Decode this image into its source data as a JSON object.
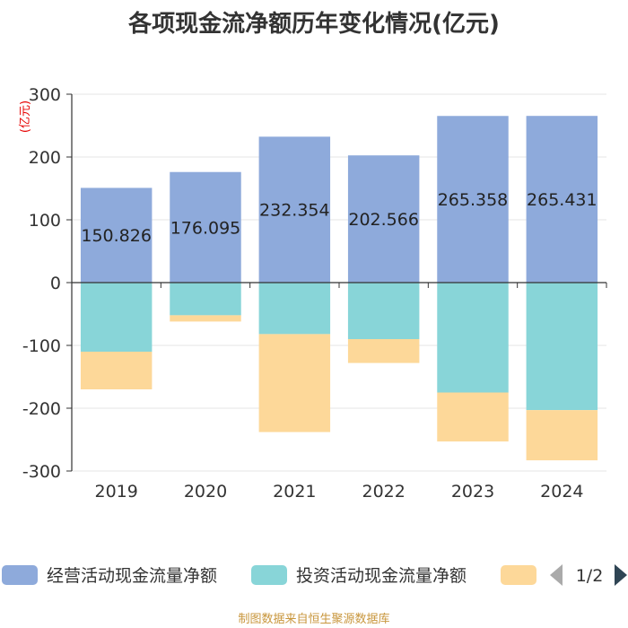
{
  "chart_data": {
    "type": "bar",
    "stacked": true,
    "title": "各项现金流净额历年变化情况(亿元)",
    "ylabel": "(亿元)",
    "ylim": [
      -300,
      300
    ],
    "yticks": [
      300,
      200,
      100,
      0,
      -100,
      -200,
      -300
    ],
    "ytick_labels": [
      "300",
      "200",
      "100",
      "0",
      "-100",
      "-200",
      "-300"
    ],
    "categories": [
      "2019",
      "2020",
      "2021",
      "2022",
      "2023",
      "2024"
    ],
    "series": [
      {
        "name": "经营活动现金流量净额",
        "color": "#8eaadb",
        "values": [
          150.826,
          176.095,
          232.354,
          202.566,
          265.358,
          265.431
        ],
        "labels": [
          "150.826",
          "176.095",
          "232.354",
          "202.566",
          "265.358",
          "265.431"
        ]
      },
      {
        "name": "投资活动现金流量净额",
        "color": "#88d5d8",
        "values": [
          -110,
          -52,
          -82,
          -90,
          -175,
          -203
        ]
      },
      {
        "name": "",
        "color": "#fdd899",
        "values": [
          -60,
          -10,
          -156,
          -38,
          -78,
          -80
        ]
      }
    ],
    "legend": {
      "position": "bottom",
      "page": "1/2"
    },
    "source": "制图数据来自恒生聚源数据库"
  },
  "icons": {
    "prev": "triangle-left-icon",
    "next": "triangle-right-icon"
  }
}
